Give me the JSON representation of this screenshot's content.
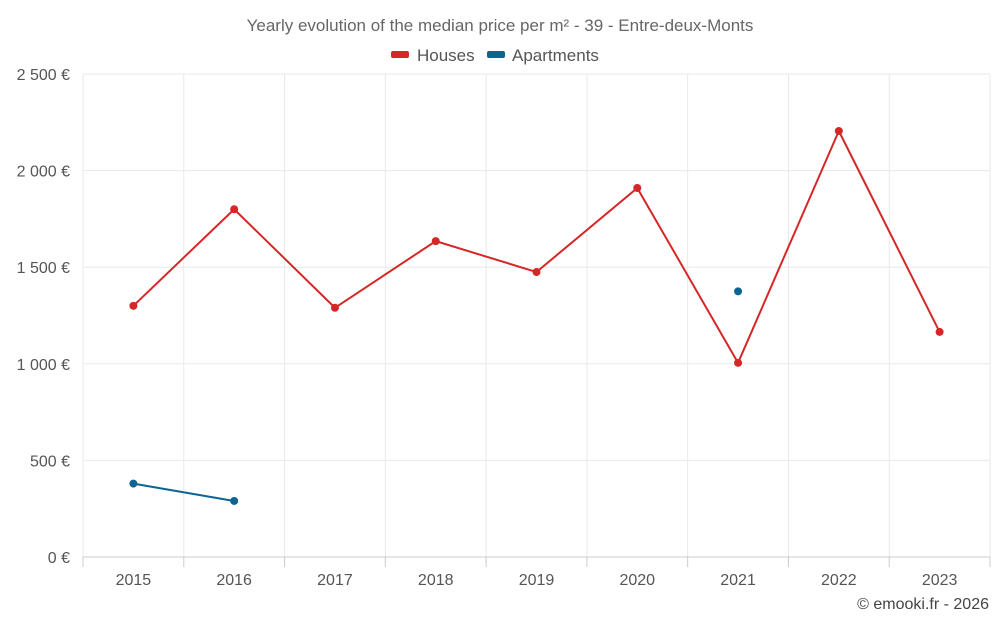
{
  "chart_data": {
    "type": "line",
    "title": "Yearly evolution of the median price per m² - 39 - Entre-deux-Monts",
    "categories": [
      "2015",
      "2016",
      "2017",
      "2018",
      "2019",
      "2020",
      "2021",
      "2022",
      "2023"
    ],
    "series": [
      {
        "name": "Houses",
        "color": "#d62728",
        "values": [
          1300,
          1800,
          1290,
          1635,
          1475,
          1910,
          1005,
          2205,
          1165
        ]
      },
      {
        "name": "Apartments",
        "color": "#0b6493",
        "values": [
          380,
          290,
          null,
          null,
          null,
          null,
          1375,
          null,
          null
        ]
      }
    ],
    "y_ticks": [
      "0 €",
      "500 €",
      "1 000 €",
      "1 500 €",
      "2 000 €",
      "2 500 €"
    ],
    "ylim": [
      0,
      2500
    ],
    "xlabel": "",
    "ylabel": "",
    "grid": true,
    "legend_position": "top-center",
    "credit": "© emooki.fr - 2026"
  }
}
